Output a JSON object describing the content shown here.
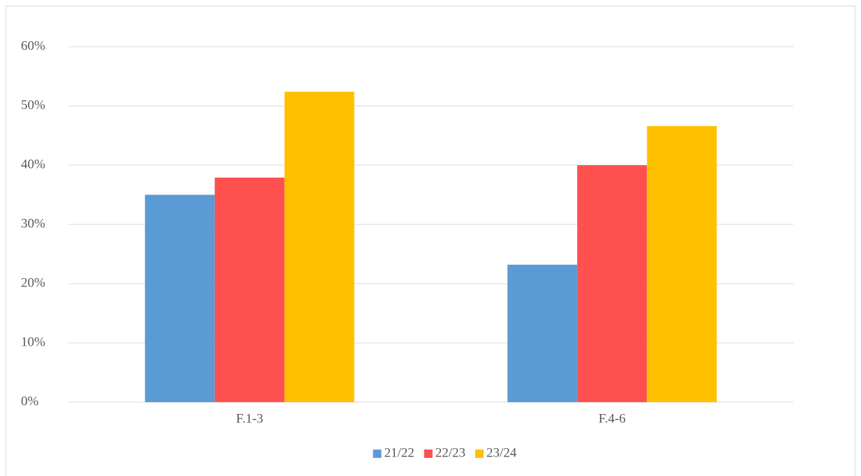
{
  "chart_data": {
    "type": "bar",
    "categories": [
      "F.1-3",
      "F.4-6"
    ],
    "series": [
      {
        "name": "21/22",
        "color": "#5b9bd5",
        "values": [
          35,
          23.2
        ]
      },
      {
        "name": "22/23",
        "color": "#ff5050",
        "values": [
          37.9,
          40
        ]
      },
      {
        "name": "23/24",
        "color": "#ffc000",
        "values": [
          52.4,
          46.6
        ]
      }
    ],
    "ylim": [
      0,
      60
    ],
    "yticks": [
      {
        "value": 0,
        "label": "0%"
      },
      {
        "value": 10,
        "label": "10%"
      },
      {
        "value": 20,
        "label": "20%"
      },
      {
        "value": 30,
        "label": "30%"
      },
      {
        "value": 40,
        "label": "40%"
      },
      {
        "value": 50,
        "label": "50%"
      },
      {
        "value": 60,
        "label": "60%"
      }
    ],
    "grid": true,
    "legend": "bottom"
  }
}
